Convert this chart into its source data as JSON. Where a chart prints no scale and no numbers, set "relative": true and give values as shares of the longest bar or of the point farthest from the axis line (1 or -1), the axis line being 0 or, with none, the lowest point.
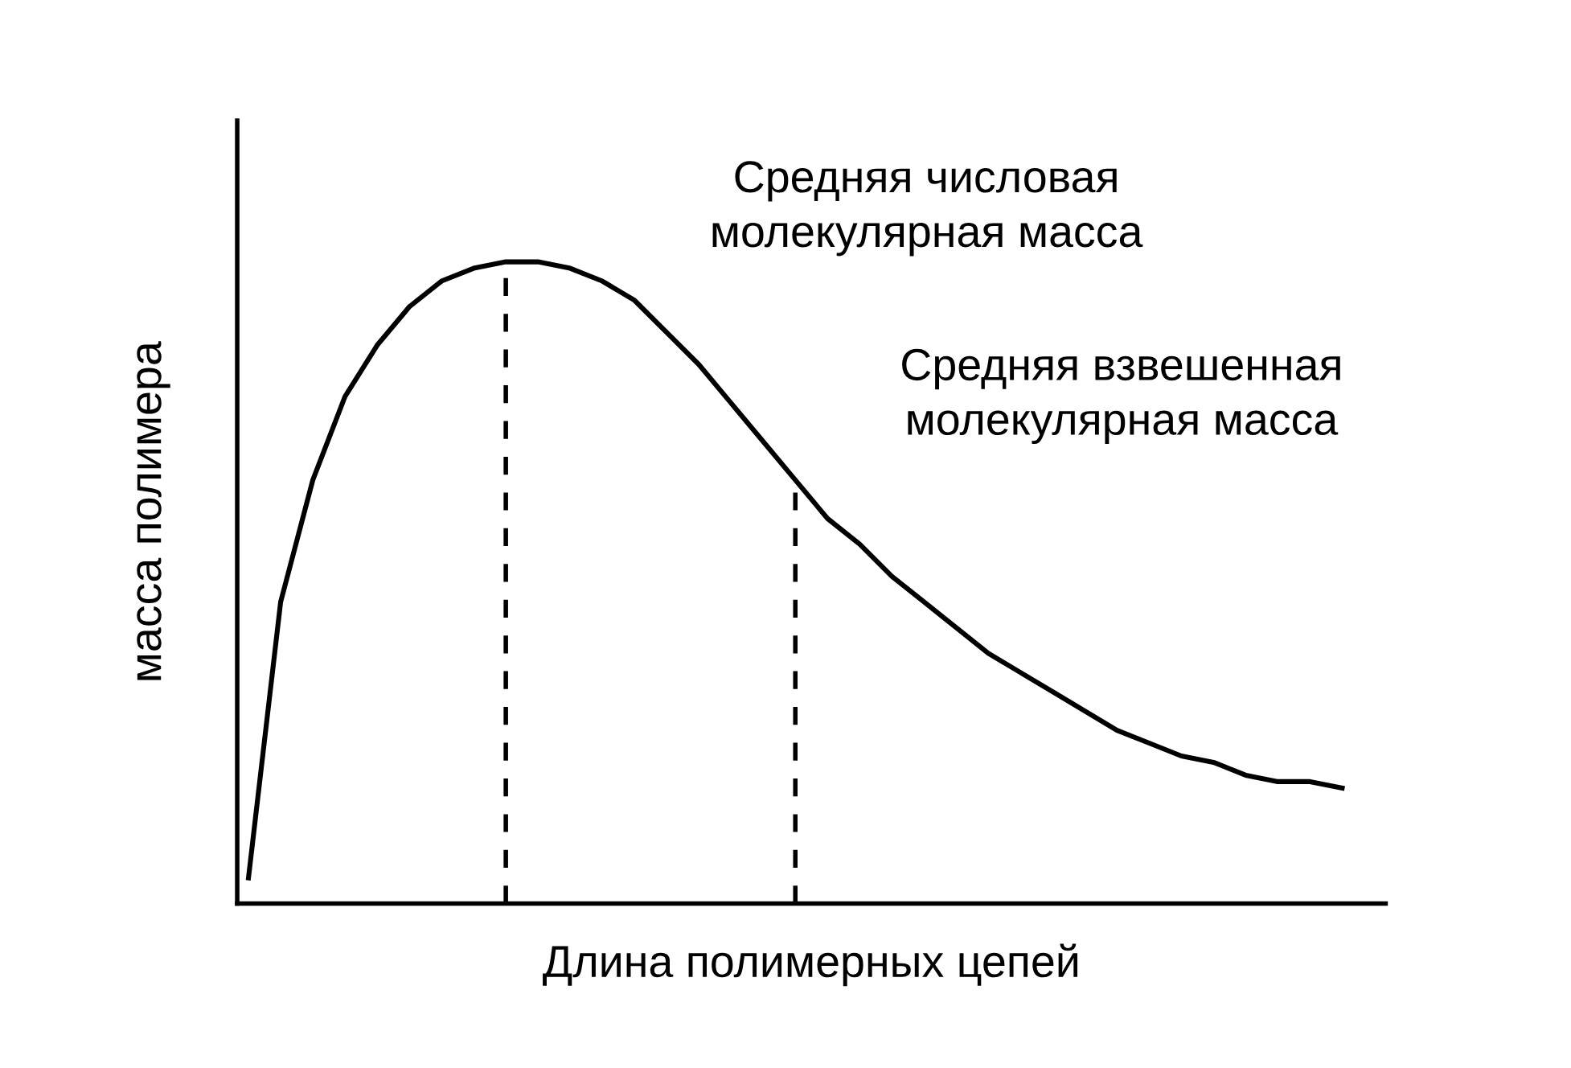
{
  "chart_data": {
    "type": "line",
    "relative": true,
    "xlabel": "Длина полимерных цепей",
    "ylabel": "масса полимера",
    "categories": [
      null,
      null,
      null,
      null,
      null,
      null,
      null,
      null,
      null,
      null,
      null,
      null,
      null,
      null,
      null,
      null,
      null,
      null,
      null,
      null,
      null,
      null,
      null,
      null,
      null,
      null,
      null,
      null,
      null,
      null,
      null,
      null,
      null,
      null,
      null
    ],
    "series": [
      {
        "color": "#000000",
        "values": [
          0.04,
          0.47,
          0.66,
          0.79,
          0.87,
          0.93,
          0.97,
          0.99,
          1.0,
          1.0,
          0.99,
          0.97,
          0.94,
          0.89,
          0.84,
          0.78,
          0.72,
          0.66,
          0.6,
          0.56,
          0.51,
          0.47,
          0.43,
          0.39,
          0.36,
          0.33,
          0.3,
          0.27,
          0.25,
          0.23,
          0.22,
          0.2,
          0.19,
          0.19,
          0.18
        ]
      }
    ],
    "annotations": [
      "Средняя числовая\nмолекулярная масса",
      "Средняя взвешенная\nмолекулярная масса"
    ],
    "marker": "none",
    "line_style": "solid"
  }
}
